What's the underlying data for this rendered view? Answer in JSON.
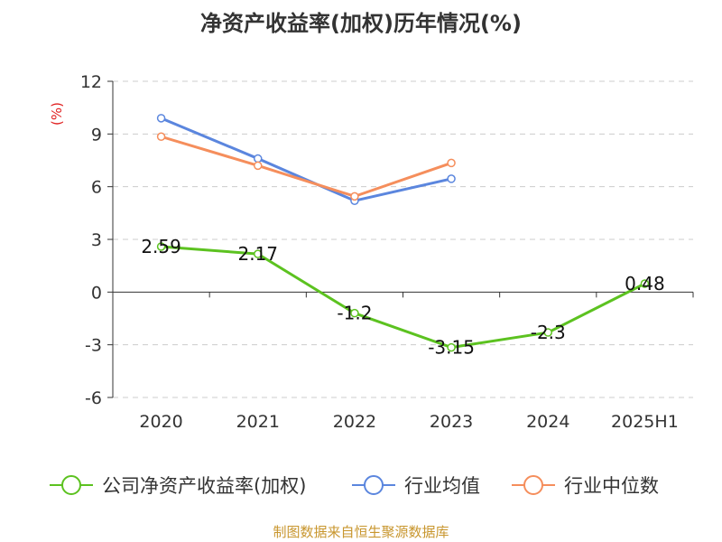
{
  "chart_data": {
    "type": "line",
    "title": "净资产收益率(加权)历年情况(%)",
    "ylabel": "(%)",
    "categories": [
      "2020",
      "2021",
      "2022",
      "2023",
      "2024",
      "2025H1"
    ],
    "ylim": [
      -6,
      12
    ],
    "yticks": [
      12,
      9,
      6,
      3,
      0,
      -3,
      -6
    ],
    "grid": true,
    "legend_position": "bottom",
    "series": [
      {
        "name": "公司净资产收益率(加权)",
        "color": "#5cc220",
        "values": [
          2.59,
          2.17,
          -1.2,
          -3.15,
          -2.3,
          0.48
        ],
        "labels": [
          "2.59",
          "2.17",
          "-1.2",
          "-3.15",
          "-2.3",
          "0.48"
        ]
      },
      {
        "name": "行业均值",
        "color": "#5b86de",
        "values": [
          9.9,
          7.6,
          5.2,
          6.45,
          null,
          null
        ]
      },
      {
        "name": "行业中位数",
        "color": "#f58e5c",
        "values": [
          8.85,
          7.2,
          5.45,
          7.35,
          null,
          null
        ]
      }
    ]
  },
  "footer": {
    "source": "制图数据来自恒生聚源数据库"
  }
}
